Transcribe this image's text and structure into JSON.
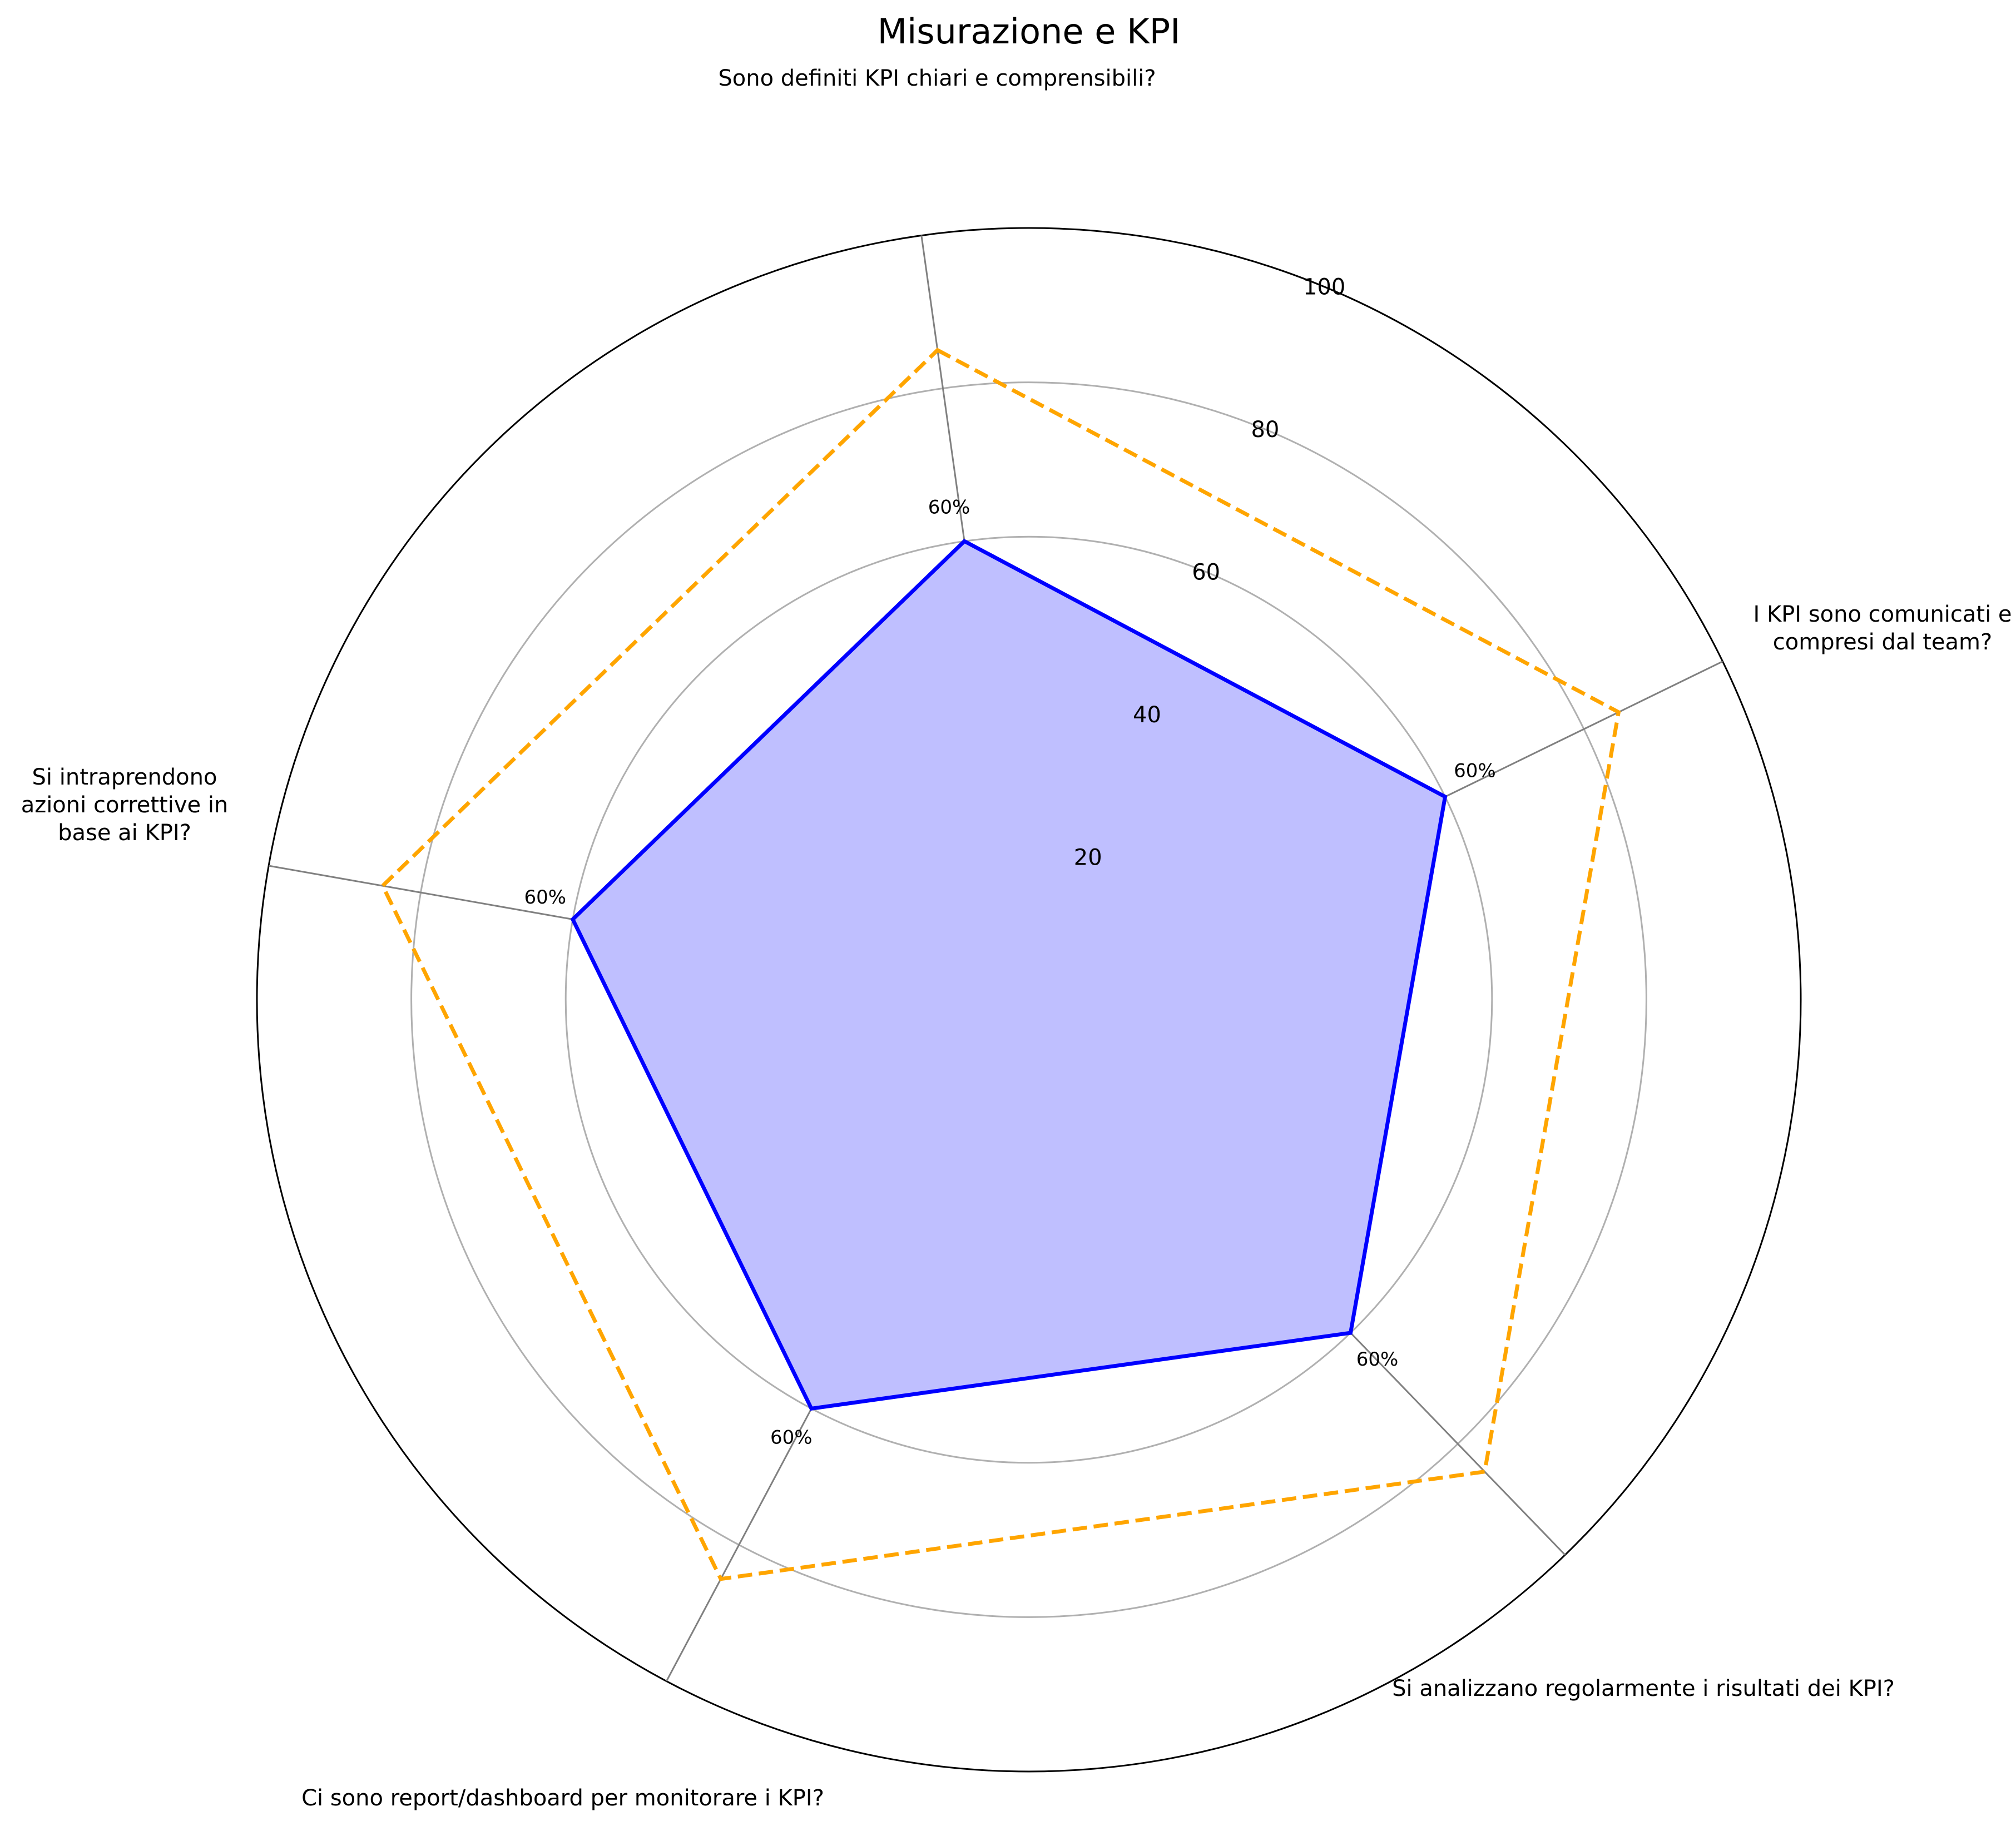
{
  "chart_data": {
    "type": "radar",
    "title": "Misurazione e KPI",
    "axes": [
      "Sono definiti KPI chiari e comprensibili?",
      "I KPI sono comunicati e\ncompresi dal team?",
      "Si analizzano regolarmente i risultati dei KPI?",
      "Ci sono report/dashboard per monitorare i KPI?",
      "Si intraprendono\nazioni correttive in\nbase ai KPI?"
    ],
    "radial_ticks": [
      "20",
      "40",
      "60",
      "80",
      "100"
    ],
    "radial_tick_values": [
      20,
      40,
      60,
      80,
      100
    ],
    "rlim": [
      0,
      100
    ],
    "start_angle_deg": 98,
    "series": [
      {
        "values": [
          60,
          60,
          60,
          60,
          60
        ],
        "style": "solid-filled",
        "color": "#0000ff",
        "fill_color": "#bfbfff",
        "point_labels": [
          "60%",
          "60%",
          "60%",
          "60%",
          "60%"
        ]
      },
      {
        "values": [
          85,
          85,
          85,
          85,
          85
        ],
        "style": "dashed",
        "color": "#ffa500"
      }
    ],
    "grid": true,
    "grid_color": "#b0b0b0",
    "spoke_color": "#808080"
  }
}
